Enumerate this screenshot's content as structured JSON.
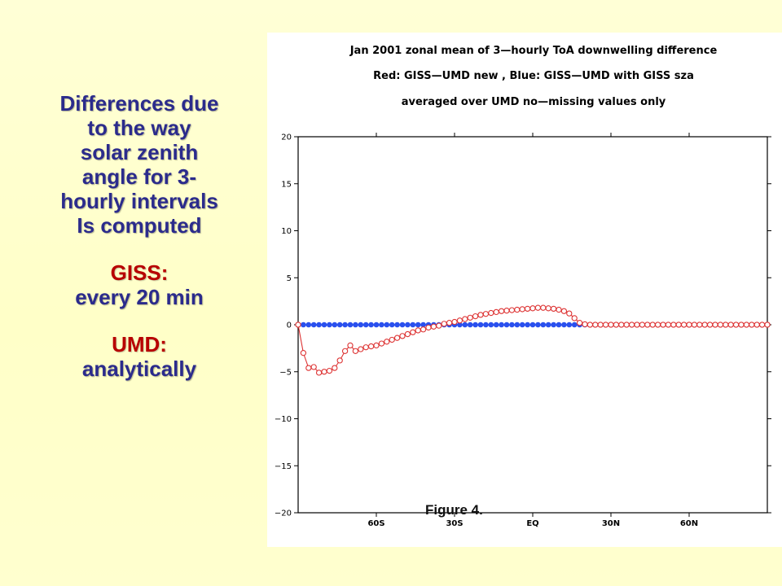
{
  "slide": {
    "heading_lines": [
      "Differences due",
      "to the way",
      "solar zenith",
      "angle for 3-",
      "hourly intervals",
      "Is computed"
    ],
    "methods": [
      {
        "name": "GISS:",
        "description": "every 20 min"
      },
      {
        "name": "UMD:",
        "description": "analytically"
      }
    ],
    "figure_caption": "Figure 4.",
    "colors": {
      "heading": "#2b2b8c",
      "method_name": "#b80000",
      "background": "#ffffcc"
    }
  },
  "chart_data": {
    "type": "line",
    "title_lines": [
      "Jan 2001  zonal mean of 3—hourly ToA downwelling difference",
      "Red:  GISS—UMD  new  ,  Blue:  GISS—UMD  with  GISS  sza",
      "averaged over UMD no—missing values only"
    ],
    "xlabel": "",
    "ylabel": "",
    "xlim": [
      -90,
      90
    ],
    "ylim": [
      -20,
      20
    ],
    "x_ticks": [
      -60,
      -30,
      0,
      30,
      60
    ],
    "x_tick_labels": [
      "60S",
      "30S",
      "EQ",
      "30N",
      "60N"
    ],
    "y_ticks": [
      -20,
      -15,
      -10,
      -5,
      0,
      5,
      10,
      15,
      20
    ],
    "y_tick_labels": [
      "−20",
      "−15",
      "−10",
      "−5",
      "0",
      "5",
      "10",
      "15",
      "20"
    ],
    "grid": false,
    "series": [
      {
        "color": "#dd3333",
        "marker": "open-circle",
        "x": [
          -90,
          -88,
          -86,
          -84,
          -82,
          -80,
          -78,
          -76,
          -74,
          -72,
          -70,
          -68,
          -66,
          -64,
          -62,
          -60,
          -58,
          -56,
          -54,
          -52,
          -50,
          -48,
          -46,
          -44,
          -42,
          -40,
          -38,
          -36,
          -34,
          -32,
          -30,
          -28,
          -26,
          -24,
          -22,
          -20,
          -18,
          -16,
          -14,
          -12,
          -10,
          -8,
          -6,
          -4,
          -2,
          0,
          2,
          4,
          6,
          8,
          10,
          12,
          14,
          16,
          18,
          20,
          22,
          24,
          26,
          28,
          30,
          32,
          34,
          36,
          38,
          40,
          42,
          44,
          46,
          48,
          50,
          52,
          54,
          56,
          58,
          60,
          62,
          64,
          66,
          68,
          70,
          72,
          74,
          76,
          78,
          80,
          82,
          84,
          86,
          88,
          90
        ],
        "values": [
          0,
          -3.0,
          -4.6,
          -4.5,
          -5.1,
          -5.0,
          -4.9,
          -4.6,
          -3.8,
          -2.8,
          -2.2,
          -2.8,
          -2.6,
          -2.4,
          -2.3,
          -2.2,
          -2.0,
          -1.8,
          -1.6,
          -1.4,
          -1.2,
          -1.0,
          -0.8,
          -0.6,
          -0.5,
          -0.3,
          -0.2,
          -0.1,
          0.1,
          0.2,
          0.3,
          0.45,
          0.6,
          0.75,
          0.9,
          1.05,
          1.15,
          1.25,
          1.35,
          1.45,
          1.5,
          1.55,
          1.6,
          1.65,
          1.7,
          1.75,
          1.8,
          1.8,
          1.75,
          1.7,
          1.6,
          1.45,
          1.2,
          0.7,
          0.2,
          0.05,
          0.0,
          0.0,
          0.0,
          0.0,
          0.0,
          0.0,
          0.0,
          0.0,
          0.0,
          0.0,
          0.0,
          0.0,
          0.0,
          0.0,
          0.0,
          0.0,
          0.0,
          0.0,
          0.0,
          0.0,
          0.0,
          0.0,
          0.0,
          0.0,
          0.0,
          0.0,
          0.0,
          0.0,
          0.0,
          0.0,
          0.0,
          0.0,
          0.0,
          0.0,
          0.0
        ]
      },
      {
        "color": "#2a50ee",
        "marker": "filled-circle",
        "x": [
          -90,
          -88,
          -86,
          -84,
          -82,
          -80,
          -78,
          -76,
          -74,
          -72,
          -70,
          -68,
          -66,
          -64,
          -62,
          -60,
          -58,
          -56,
          -54,
          -52,
          -50,
          -48,
          -46,
          -44,
          -42,
          -40,
          -38,
          -36,
          -34,
          -32,
          -30,
          -28,
          -26,
          -24,
          -22,
          -20,
          -18,
          -16,
          -14,
          -12,
          -10,
          -8,
          -6,
          -4,
          -2,
          0,
          2,
          4,
          6,
          8,
          10,
          12,
          14,
          16,
          18,
          20,
          22,
          24,
          26,
          28,
          30,
          32,
          34,
          36,
          38,
          40,
          42,
          44,
          46,
          48,
          50,
          52,
          54,
          56,
          58,
          60,
          62,
          64,
          66,
          68,
          70,
          72,
          74,
          76,
          78,
          80,
          82,
          84,
          86,
          88,
          90
        ],
        "values": [
          0,
          0,
          0,
          0,
          0,
          0,
          0,
          0,
          0,
          0,
          0,
          0,
          0,
          0,
          0,
          0,
          0,
          0,
          0,
          0,
          0,
          0,
          0,
          0,
          0,
          0,
          0,
          0,
          0,
          0,
          0,
          0,
          0,
          0,
          0,
          0,
          0,
          0,
          0,
          0,
          0,
          0,
          0,
          0,
          0,
          0,
          0,
          0,
          0,
          0,
          0,
          0,
          0,
          0,
          0,
          0,
          0,
          0,
          0,
          0,
          0,
          0,
          0,
          0,
          0,
          0,
          0,
          0,
          0,
          0,
          0,
          0,
          0,
          0,
          0,
          0,
          0,
          0,
          0,
          0,
          0,
          0,
          0,
          0,
          0,
          0,
          0,
          0,
          0,
          0,
          0
        ]
      }
    ]
  }
}
